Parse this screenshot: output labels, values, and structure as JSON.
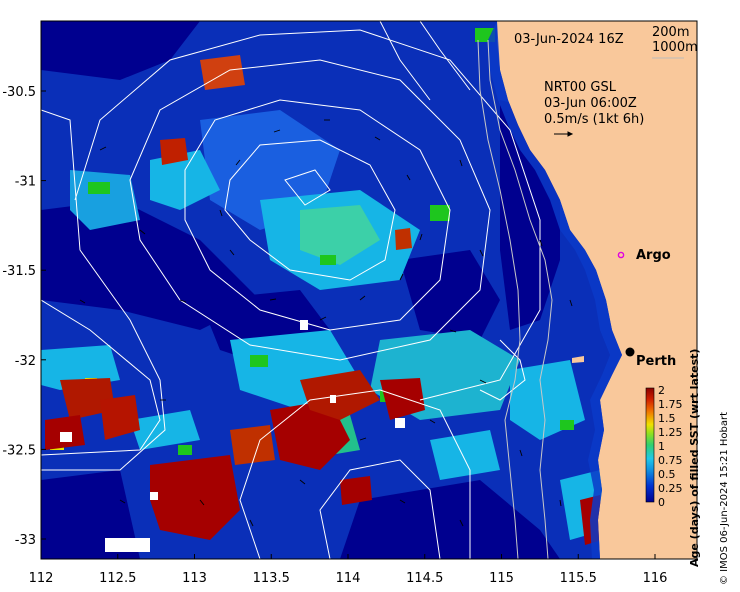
{
  "title": {
    "date": "03-Jun-2024 16Z",
    "product": "NRT00 GSL",
    "product_time": "03-Jun 06:00Z",
    "speed_scale": "0.5m/s (1kt 6h)"
  },
  "isobaths": {
    "label_200": "200m",
    "label_1000": "1000m"
  },
  "axes": {
    "x_ticks": [
      "112",
      "112.5",
      "113",
      "113.5",
      "114",
      "114.5",
      "115",
      "115.5",
      "116"
    ],
    "y_ticks": [
      "-30.5",
      "-31",
      "-31.5",
      "-32",
      "-32.5",
      "-33"
    ]
  },
  "places": {
    "argo": "Argo",
    "perth": "Perth"
  },
  "colorbar": {
    "title": "Age (days) of filled SST (wrt latest)",
    "ticks": [
      "2",
      "1.75",
      "1.5",
      "1.25",
      "1",
      "0.75",
      "0.5",
      "0.25",
      "0"
    ]
  },
  "credit": "© IMOS 06-Jun-2024 15:21 Hobart",
  "colors": {
    "land": "#f9c89b",
    "deep_blue": "#00008f",
    "blue": "#0a39c8",
    "cyan": "#16b5e6",
    "green": "#1ec61e",
    "red": "#a50000"
  }
}
